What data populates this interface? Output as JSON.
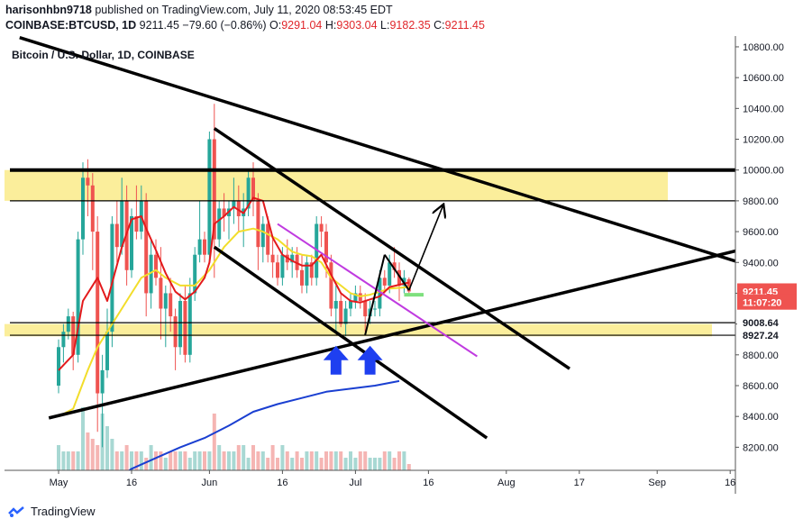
{
  "header": {
    "author": "harisonhbn9718",
    "published_text": "published on TradingView.com, July 11, 2020 08:53:45 EDT",
    "symbol": "COINBASE:BTCUSD, 1D",
    "last": "9211.45",
    "change": "−79.60 (−0.86%)",
    "o_label": "O:",
    "o": "9291.04",
    "h_label": "H:",
    "h": "9303.04",
    "l_label": "L:",
    "l": "9182.35",
    "c_label": "C:",
    "c": "9211.45"
  },
  "footer": {
    "brand": "TradingView"
  },
  "colors": {
    "up": "#26a69a",
    "down": "#ef5350",
    "ma_red": "#e31a1c",
    "ma_yellow": "#f2dd2b",
    "ma_blue": "#1a3fd1",
    "zone": "#fbee9b",
    "purple": "#c03be0",
    "arrow_blue": "#1e3ff0",
    "green_mark": "#7ee07e",
    "price_tag": "#ef5350",
    "axis_text": "#131722"
  },
  "chart_data": {
    "type": "candlestick",
    "title": "Bitcoin / U.S. Dollar, 1D, COINBASE",
    "ylim": [
      8050,
      10870
    ],
    "y_ticks": [
      8200,
      8400,
      8600,
      8800,
      9000,
      9200,
      9400,
      9600,
      9800,
      10000,
      10200,
      10400,
      10600,
      10800
    ],
    "y_tick_labels": [
      "8200.00",
      "8400.00",
      "8600.00",
      "8800.00",
      "9000.00",
      "9200.00",
      "9400.00",
      "9600.00",
      "9800.00",
      "10000.00",
      "10200.00",
      "10400.00",
      "10600.00",
      "10800.00"
    ],
    "x_ticks": [
      {
        "day": 0,
        "label": "May"
      },
      {
        "day": 15,
        "label": "16"
      },
      {
        "day": 31,
        "label": "Jun"
      },
      {
        "day": 46,
        "label": "16"
      },
      {
        "day": 61,
        "label": "Jul"
      },
      {
        "day": 76,
        "label": "16"
      },
      {
        "day": 92,
        "label": "Aug"
      },
      {
        "day": 107,
        "label": "17"
      },
      {
        "day": 123,
        "label": "Sep"
      },
      {
        "day": 138,
        "label": "16"
      }
    ],
    "price_labels": [
      {
        "value": 9008.64,
        "text": "9008.64",
        "style": "dark"
      },
      {
        "value": 8927.24,
        "text": "8927.24",
        "style": "dark"
      },
      {
        "value": 9211.45,
        "text": "9211.45",
        "style": "red"
      },
      {
        "value": 9140,
        "text": "11:07:20",
        "style": "red"
      }
    ],
    "candles": [
      [
        8600,
        8900,
        8550,
        8850
      ],
      [
        8850,
        9000,
        8750,
        8950
      ],
      [
        8950,
        9100,
        8900,
        9050
      ],
      [
        9050,
        9080,
        8700,
        8800
      ],
      [
        8800,
        9600,
        8750,
        9550
      ],
      [
        9550,
        10050,
        9450,
        9950
      ],
      [
        9950,
        10070,
        9700,
        9900
      ],
      [
        9900,
        9980,
        9350,
        9600
      ],
      [
        9600,
        9700,
        8300,
        8550
      ],
      [
        8550,
        8800,
        8200,
        8700
      ],
      [
        8700,
        9100,
        8650,
        8950
      ],
      [
        8950,
        9700,
        8850,
        9650
      ],
      [
        9650,
        9800,
        9400,
        9500
      ],
      [
        9500,
        9950,
        9450,
        9800
      ],
      [
        9800,
        9900,
        9250,
        9350
      ],
      [
        9350,
        9750,
        9300,
        9700
      ],
      [
        9700,
        9900,
        9550,
        9600
      ],
      [
        9600,
        9900,
        9550,
        9800
      ],
      [
        9800,
        9850,
        9050,
        9200
      ],
      [
        9200,
        9550,
        9100,
        9450
      ],
      [
        9450,
        9550,
        9250,
        9300
      ],
      [
        9300,
        9500,
        8900,
        9100
      ],
      [
        9100,
        9250,
        8850,
        9200
      ],
      [
        9200,
        9300,
        8950,
        9050
      ],
      [
        9050,
        9100,
        8700,
        8850
      ],
      [
        8850,
        9200,
        8800,
        9150
      ],
      [
        9150,
        9250,
        8750,
        8800
      ],
      [
        8800,
        9300,
        8750,
        9200
      ],
      [
        9200,
        9500,
        9150,
        9450
      ],
      [
        9450,
        9800,
        9400,
        9550
      ],
      [
        9550,
        9600,
        9400,
        9450
      ],
      [
        9450,
        10250,
        9400,
        10200
      ],
      [
        10200,
        10430,
        9300,
        9550
      ],
      [
        9550,
        9800,
        9500,
        9750
      ],
      [
        9750,
        9850,
        9600,
        9700
      ],
      [
        9700,
        9800,
        9550,
        9750
      ],
      [
        9750,
        9950,
        9650,
        9800
      ],
      [
        9800,
        9900,
        9600,
        9700
      ],
      [
        9700,
        9850,
        9500,
        9750
      ],
      [
        9750,
        10000,
        9700,
        9950
      ],
      [
        9950,
        10050,
        9700,
        9800
      ],
      [
        9800,
        9850,
        9350,
        9500
      ],
      [
        9500,
        9700,
        9400,
        9650
      ],
      [
        9650,
        9700,
        9400,
        9450
      ],
      [
        9450,
        9550,
        9300,
        9400
      ],
      [
        9400,
        9450,
        9250,
        9300
      ],
      [
        9300,
        9500,
        9250,
        9450
      ],
      [
        9450,
        9550,
        9350,
        9400
      ],
      [
        9400,
        9500,
        9300,
        9450
      ],
      [
        9450,
        9500,
        9300,
        9350
      ],
      [
        9350,
        9450,
        9200,
        9250
      ],
      [
        9250,
        9450,
        9200,
        9400
      ],
      [
        9400,
        9450,
        9250,
        9300
      ],
      [
        9300,
        9700,
        9250,
        9650
      ],
      [
        9650,
        9700,
        9500,
        9600
      ],
      [
        9600,
        9650,
        9300,
        9400
      ],
      [
        9400,
        9450,
        9050,
        9100
      ],
      [
        9100,
        9250,
        8950,
        9150
      ],
      [
        9150,
        9200,
        8980,
        9000
      ],
      [
        9000,
        9150,
        8920,
        9100
      ],
      [
        9100,
        9200,
        9050,
        9150
      ],
      [
        9150,
        9250,
        9100,
        9200
      ],
      [
        9200,
        9250,
        9100,
        9150
      ],
      [
        9150,
        9200,
        8950,
        9050
      ],
      [
        9050,
        9150,
        9000,
        9100
      ],
      [
        9100,
        9150,
        9050,
        9100
      ],
      [
        9100,
        9350,
        9050,
        9300
      ],
      [
        9300,
        9350,
        9200,
        9250
      ],
      [
        9250,
        9450,
        9200,
        9400
      ],
      [
        9400,
        9500,
        9300,
        9350
      ],
      [
        9350,
        9400,
        9150,
        9250
      ],
      [
        9250,
        9350,
        9200,
        9300
      ],
      [
        9291.04,
        9303.04,
        9182.35,
        9211.45
      ]
    ],
    "volumes": [
      4,
      3,
      3,
      3,
      3,
      10,
      6,
      5,
      4,
      9,
      7,
      5,
      3,
      3,
      4,
      3,
      3,
      3,
      2,
      4,
      3,
      3,
      2,
      3,
      3,
      3,
      3,
      2,
      3,
      3,
      3,
      3,
      9,
      4,
      3,
      3,
      3,
      4,
      4,
      2,
      4,
      3,
      3,
      2,
      4,
      2,
      4,
      3,
      2,
      3,
      2,
      3,
      3,
      3,
      2,
      3,
      3,
      3,
      3,
      2,
      3,
      2,
      3,
      3,
      2,
      2,
      2,
      3,
      3,
      2,
      3,
      3,
      1
    ],
    "ma_red": [
      [
        0,
        8700
      ],
      [
        3,
        8800
      ],
      [
        5,
        9150
      ],
      [
        8,
        9300
      ],
      [
        10,
        9150
      ],
      [
        13,
        9500
      ],
      [
        15,
        9680
      ],
      [
        17,
        9700
      ],
      [
        18,
        9620
      ],
      [
        20,
        9480
      ],
      [
        22,
        9330
      ],
      [
        24,
        9210
      ],
      [
        26,
        9160
      ],
      [
        28,
        9210
      ],
      [
        30,
        9300
      ],
      [
        31,
        9400
      ],
      [
        32,
        9650
      ],
      [
        34,
        9700
      ],
      [
        36,
        9760
      ],
      [
        38,
        9720
      ],
      [
        40,
        9820
      ],
      [
        42,
        9800
      ],
      [
        44,
        9560
      ],
      [
        46,
        9450
      ],
      [
        48,
        9410
      ],
      [
        50,
        9380
      ],
      [
        52,
        9380
      ],
      [
        54,
        9450
      ],
      [
        56,
        9320
      ],
      [
        58,
        9200
      ],
      [
        60,
        9150
      ],
      [
        62,
        9140
      ],
      [
        64,
        9160
      ],
      [
        66,
        9180
      ],
      [
        68,
        9240
      ],
      [
        72,
        9270
      ]
    ],
    "ma_yellow": [
      [
        0,
        8400
      ],
      [
        3,
        8450
      ],
      [
        6,
        8700
      ],
      [
        8,
        8850
      ],
      [
        10,
        8950
      ],
      [
        12,
        9050
      ],
      [
        15,
        9200
      ],
      [
        17,
        9300
      ],
      [
        20,
        9350
      ],
      [
        22,
        9300
      ],
      [
        25,
        9250
      ],
      [
        28,
        9250
      ],
      [
        31,
        9350
      ],
      [
        34,
        9500
      ],
      [
        37,
        9600
      ],
      [
        40,
        9620
      ],
      [
        42,
        9600
      ],
      [
        45,
        9550
      ],
      [
        48,
        9470
      ],
      [
        50,
        9450
      ],
      [
        52,
        9440
      ],
      [
        54,
        9400
      ],
      [
        56,
        9300
      ],
      [
        58,
        9250
      ],
      [
        60,
        9200
      ],
      [
        62,
        9180
      ],
      [
        64,
        9190
      ],
      [
        66,
        9210
      ],
      [
        68,
        9230
      ],
      [
        72,
        9240
      ]
    ],
    "ma_blue": [
      [
        10,
        7950
      ],
      [
        15,
        8060
      ],
      [
        20,
        8130
      ],
      [
        25,
        8200
      ],
      [
        30,
        8260
      ],
      [
        35,
        8340
      ],
      [
        40,
        8430
      ],
      [
        45,
        8480
      ],
      [
        50,
        8520
      ],
      [
        55,
        8560
      ],
      [
        60,
        8580
      ],
      [
        65,
        8600
      ],
      [
        70,
        8630
      ]
    ],
    "support_zone_top": [
      10000,
      9800
    ],
    "support_zone_bottom": [
      9000,
      8920
    ],
    "drawings": [
      {
        "name": "upper-trendline",
        "from": [
          -8,
          10860
        ],
        "to": [
          145,
          9350
        ],
        "width": 3.5
      },
      {
        "name": "descending-channel-top",
        "from": [
          32,
          10270
        ],
        "to": [
          105,
          8710
        ],
        "width": 3.5
      },
      {
        "name": "descending-channel-bottom",
        "from": [
          32,
          9500
        ],
        "to": [
          88,
          8260
        ],
        "width": 3.5
      },
      {
        "name": "rising-support-line",
        "from": [
          -2,
          8390
        ],
        "to": [
          145,
          9520
        ],
        "width": 3.5
      },
      {
        "name": "resistance-line",
        "from": [
          -10,
          10000
        ],
        "to": [
          145,
          10000
        ],
        "width": 4
      },
      {
        "name": "zone-line-9800",
        "from": [
          -10,
          9800
        ],
        "to": [
          145,
          9800
        ],
        "width": 1.2
      },
      {
        "name": "zone-line-9000",
        "from": [
          -10,
          9008.64
        ],
        "to": [
          145,
          9008.64
        ],
        "width": 1.2
      },
      {
        "name": "zone-line-8927",
        "from": [
          -10,
          8927.24
        ],
        "to": [
          145,
          8927.24
        ],
        "width": 1.2
      },
      {
        "name": "purple-line",
        "from": [
          45,
          9650
        ],
        "to": [
          86,
          8790
        ],
        "width": 2,
        "color": "purple"
      },
      {
        "name": "wedge-left",
        "from": [
          63,
          8930
        ],
        "to": [
          67,
          9450
        ],
        "width": 2
      },
      {
        "name": "wedge-right",
        "from": [
          67,
          9450
        ],
        "to": [
          72,
          9220
        ],
        "width": 2
      },
      {
        "name": "projection-arrow",
        "from": [
          72,
          9220
        ],
        "to": [
          79,
          9770
        ],
        "width": 1.6,
        "arrow": true
      },
      {
        "name": "green-target",
        "from": [
          71,
          9190
        ],
        "to": [
          75,
          9190
        ],
        "width": 4,
        "color": "green"
      }
    ],
    "blue_arrows": [
      {
        "day": 57,
        "value": 8800
      },
      {
        "day": 64,
        "value": 8800
      }
    ]
  }
}
